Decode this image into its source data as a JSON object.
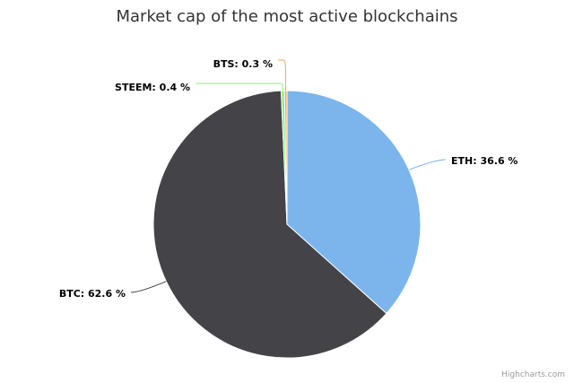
{
  "chart_data": {
    "type": "pie",
    "title": "Market cap of the most active blockchains",
    "series": [
      {
        "data": [
          {
            "name": "ETH",
            "value": 36.6,
            "label": "ETH: 36.6 %",
            "color": "#7cb5ec"
          },
          {
            "name": "BTC",
            "value": 62.6,
            "label": "BTC: 62.6 %",
            "color": "#434348"
          },
          {
            "name": "STEEM",
            "value": 0.4,
            "label": "STEEM: 0.4 %",
            "color": "#90ed7d"
          },
          {
            "name": "BTS",
            "value": 0.3,
            "label": "BTS: 0.3 %",
            "color": "#f7a35c"
          }
        ]
      }
    ]
  },
  "credits": "Highcharts.com"
}
